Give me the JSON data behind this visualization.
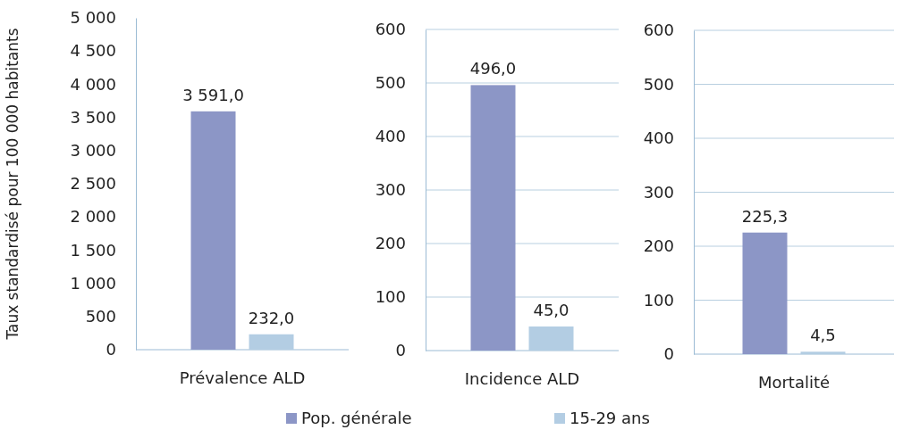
{
  "chart_data": [
    {
      "type": "bar",
      "ylabel": "Taux standardisé pour 100 000 habitants",
      "categories": [
        "Prévalence ALD"
      ],
      "ylim": [
        0,
        5000
      ],
      "yticks": [
        0,
        {
          "value": 500,
          "label": "500"
        },
        {
          "value": 1000,
          "label": "1 000"
        },
        {
          "value": 1500,
          "label": "1 500"
        },
        {
          "value": 2000,
          "label": "2 000"
        },
        {
          "value": 2500,
          "label": "2 500"
        },
        {
          "value": 3000,
          "label": "3 000"
        },
        {
          "value": 3500,
          "label": "3 500"
        },
        {
          "value": 4000,
          "label": "4 000"
        },
        {
          "value": 4500,
          "label": "4 500"
        },
        {
          "value": 5000,
          "label": "5 000"
        }
      ],
      "grid": false,
      "series": [
        {
          "color": "#8c96c6",
          "values": [
            3591.0
          ],
          "value_labels": [
            "3 591,0"
          ]
        },
        {
          "color": "#b3cde3",
          "values": [
            232.0
          ],
          "value_labels": [
            "232,0"
          ]
        }
      ]
    },
    {
      "type": "bar",
      "categories": [
        "Incidence ALD"
      ],
      "ylim": [
        0,
        600
      ],
      "yticks": [
        0,
        100,
        200,
        300,
        400,
        500,
        600
      ],
      "grid": "y",
      "legend": "bottom",
      "series": [
        {
          "name": "Pop. générale",
          "color": "#8c96c6",
          "values": [
            496.0
          ],
          "value_labels": [
            "496,0"
          ]
        },
        {
          "name": "15-29 ans",
          "color": "#b3cde3",
          "values": [
            45.0
          ],
          "value_labels": [
            "45,0"
          ]
        }
      ]
    },
    {
      "type": "bar",
      "categories": [
        "Mortalité"
      ],
      "ylim": [
        0,
        600
      ],
      "yticks": [
        0,
        100,
        200,
        300,
        400,
        500,
        600
      ],
      "grid": "y",
      "series": [
        {
          "color": "#8c96c6",
          "values": [
            225.3
          ],
          "value_labels": [
            "225,3"
          ]
        },
        {
          "color": "#b3cde3",
          "values": [
            4.5
          ],
          "value_labels": [
            "4,5"
          ]
        }
      ]
    }
  ]
}
